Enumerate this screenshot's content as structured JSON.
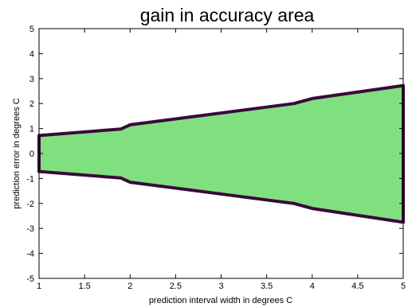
{
  "chart_data": {
    "type": "area",
    "title": "gain in accuracy area",
    "xlabel": "prediction interval width in degrees C",
    "ylabel": "prediction error in degrees C",
    "xlim": [
      1,
      5
    ],
    "ylim": [
      -5,
      5
    ],
    "xticks": [
      "1",
      "1.5",
      "2",
      "2.5",
      "3",
      "3.5",
      "4",
      "4.5",
      "5"
    ],
    "yticks": [
      "5",
      "4",
      "3",
      "2",
      "1",
      "0",
      "-1",
      "-2",
      "-3",
      "-4",
      "-5"
    ],
    "grid": false,
    "fill_color": "#80e080",
    "edge_color": "#3a0a3a",
    "series": [
      {
        "x": [
          1,
          1.9,
          2.0,
          3.8,
          4.0,
          5.0
        ],
        "upper": [
          0.72,
          0.98,
          1.15,
          2.0,
          2.2,
          2.72
        ],
        "lower": [
          -0.72,
          -0.98,
          -1.15,
          -2.0,
          -2.2,
          -2.75
        ]
      }
    ]
  }
}
